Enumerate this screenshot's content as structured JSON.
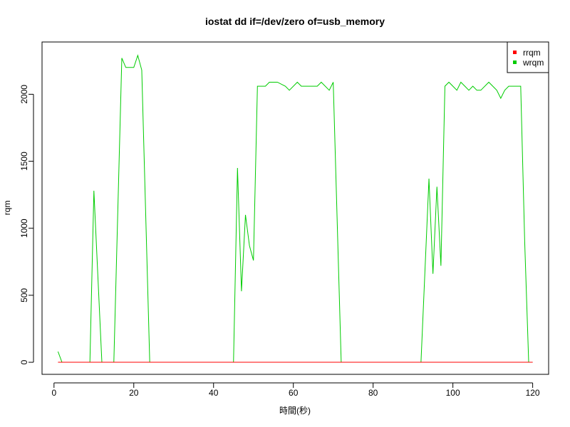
{
  "chart_data": {
    "type": "line",
    "title": "iostat dd if=/dev/zero of=usb_memory",
    "xlabel": "時間(秒)",
    "ylabel": "rqm",
    "xlim": [
      -3,
      124
    ],
    "ylim": [
      -90,
      2390
    ],
    "xticks": [
      0,
      20,
      40,
      60,
      80,
      100,
      120
    ],
    "yticks": [
      0,
      500,
      1000,
      1500,
      2000
    ],
    "legend_position": "top-right",
    "series": [
      {
        "name": "rrqm",
        "color": "#ff0000",
        "x": [
          1,
          120
        ],
        "y": [
          0,
          0
        ]
      },
      {
        "name": "wrqm",
        "color": "#00cc00",
        "x": [
          1,
          2,
          9,
          10,
          12,
          15,
          17,
          18,
          20,
          21,
          22,
          24,
          45,
          46,
          47,
          48,
          49,
          50,
          51,
          53,
          54,
          56,
          58,
          59,
          61,
          62,
          66,
          67,
          69,
          70,
          72,
          92,
          94,
          95,
          96,
          97,
          98,
          99,
          101,
          102,
          103,
          104,
          105,
          106,
          107,
          109,
          110,
          111,
          112,
          113,
          114,
          117,
          118,
          119,
          120
        ],
        "y": [
          80,
          0,
          0,
          1280,
          0,
          0,
          2270,
          2200,
          2200,
          2290,
          2180,
          0,
          0,
          1450,
          530,
          1100,
          870,
          760,
          2060,
          2060,
          2090,
          2090,
          2060,
          2030,
          2090,
          2060,
          2060,
          2090,
          2030,
          2090,
          0,
          0,
          1370,
          660,
          1310,
          720,
          2060,
          2090,
          2030,
          2090,
          2060,
          2030,
          2060,
          2030,
          2030,
          2090,
          2060,
          2030,
          1970,
          2030,
          2060,
          2060,
          900,
          0,
          0
        ]
      }
    ]
  }
}
